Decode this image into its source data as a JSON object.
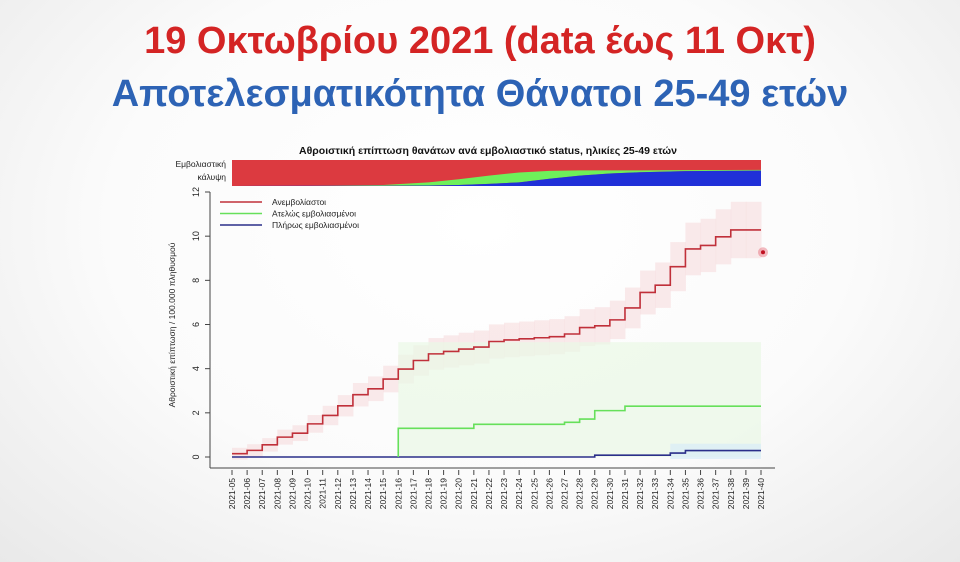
{
  "slide": {
    "title": "19 Οκτωβρίου 2021 (data έως 11 Οκτ)",
    "subtitle": "Αποτελεσματικότητα Θάνατοι 25-49 ετών",
    "title_color": "#d42424",
    "subtitle_color": "#2d63b5"
  },
  "chart_data": {
    "type": "line",
    "step": true,
    "title": "Αθροιστική επίπτωση θανάτων ανά εμβολιαστικό status, ηλικίες 25-49 ετών",
    "xlabel": "",
    "ylabel": "Αθροιστική επίπτωση / 100.000 πληθυσμού",
    "ylim": [
      0,
      12
    ],
    "yticks": [
      "0",
      "2",
      "4",
      "6",
      "8",
      "10",
      "12"
    ],
    "grid": false,
    "legend_position": "top-left",
    "categories": [
      "2021-05",
      "2021-06",
      "2021-07",
      "2021-08",
      "2021-09",
      "2021-10",
      "2021-11",
      "2021-12",
      "2021-13",
      "2021-14",
      "2021-15",
      "2021-16",
      "2021-17",
      "2021-18",
      "2021-19",
      "2021-20",
      "2021-21",
      "2021-22",
      "2021-23",
      "2021-24",
      "2021-25",
      "2021-26",
      "2021-27",
      "2021-28",
      "2021-29",
      "2021-30",
      "2021-31",
      "2021-32",
      "2021-33",
      "2021-34",
      "2021-35",
      "2021-36",
      "2021-37",
      "2021-38",
      "2021-39",
      "2021-40"
    ],
    "series": [
      {
        "name": "Ανεμβολίαστοι",
        "color": "#c0303a",
        "values": [
          0.15,
          0.3,
          0.55,
          0.9,
          1.08,
          1.5,
          1.88,
          2.32,
          2.82,
          3.09,
          3.53,
          3.98,
          4.37,
          4.67,
          4.78,
          4.89,
          4.98,
          5.23,
          5.3,
          5.35,
          5.4,
          5.45,
          5.57,
          5.86,
          5.94,
          6.21,
          6.75,
          7.45,
          7.78,
          8.62,
          9.42,
          9.58,
          9.97,
          10.28,
          10.28,
          10.28
        ]
      },
      {
        "name": "Ατελώς εμβολιασμένοι",
        "color": "#66e05a",
        "values": [
          null,
          null,
          null,
          null,
          null,
          null,
          null,
          null,
          null,
          null,
          null,
          1.3,
          1.3,
          1.3,
          1.3,
          1.3,
          1.48,
          1.48,
          1.48,
          1.48,
          1.48,
          1.48,
          1.57,
          1.72,
          2.1,
          2.1,
          2.3,
          2.3,
          2.3,
          2.3,
          2.3,
          2.3,
          2.3,
          2.3,
          2.3,
          2.3
        ]
      },
      {
        "name": "Πλήρως εμβολιασμένοι",
        "color": "#2b2f8a",
        "values": [
          0,
          0,
          0,
          0,
          0,
          0,
          0,
          0,
          0,
          0,
          0,
          0,
          0,
          0,
          0,
          0,
          0,
          0,
          0,
          0,
          0,
          0,
          0,
          0,
          0.08,
          0.08,
          0.08,
          0.08,
          0.08,
          0.18,
          0.29,
          0.29,
          0.29,
          0.29,
          0.29,
          0.29
        ]
      }
    ],
    "highlight_point": {
      "x": "2021-40",
      "y": 9.27,
      "color": "#e04050"
    },
    "coverage_bar": {
      "label": "Εμβολιαστική κάλυψη",
      "weeks": [
        "2021-05",
        "2021-10",
        "2021-15",
        "2021-18",
        "2021-20",
        "2021-22",
        "2021-24",
        "2021-26",
        "2021-28",
        "2021-30",
        "2021-32",
        "2021-35",
        "2021-40"
      ],
      "partially_vaccinated": [
        0,
        0,
        0.03,
        0.12,
        0.22,
        0.32,
        0.38,
        0.3,
        0.2,
        0.12,
        0.07,
        0.04,
        0.03
      ],
      "fully_vaccinated": [
        0,
        0.01,
        0.01,
        0.02,
        0.04,
        0.08,
        0.14,
        0.28,
        0.4,
        0.48,
        0.53,
        0.57,
        0.59
      ],
      "colors": {
        "unvaccinated": "#dc3a40",
        "partially": "#6ef05a",
        "fully": "#2030d8"
      }
    }
  }
}
